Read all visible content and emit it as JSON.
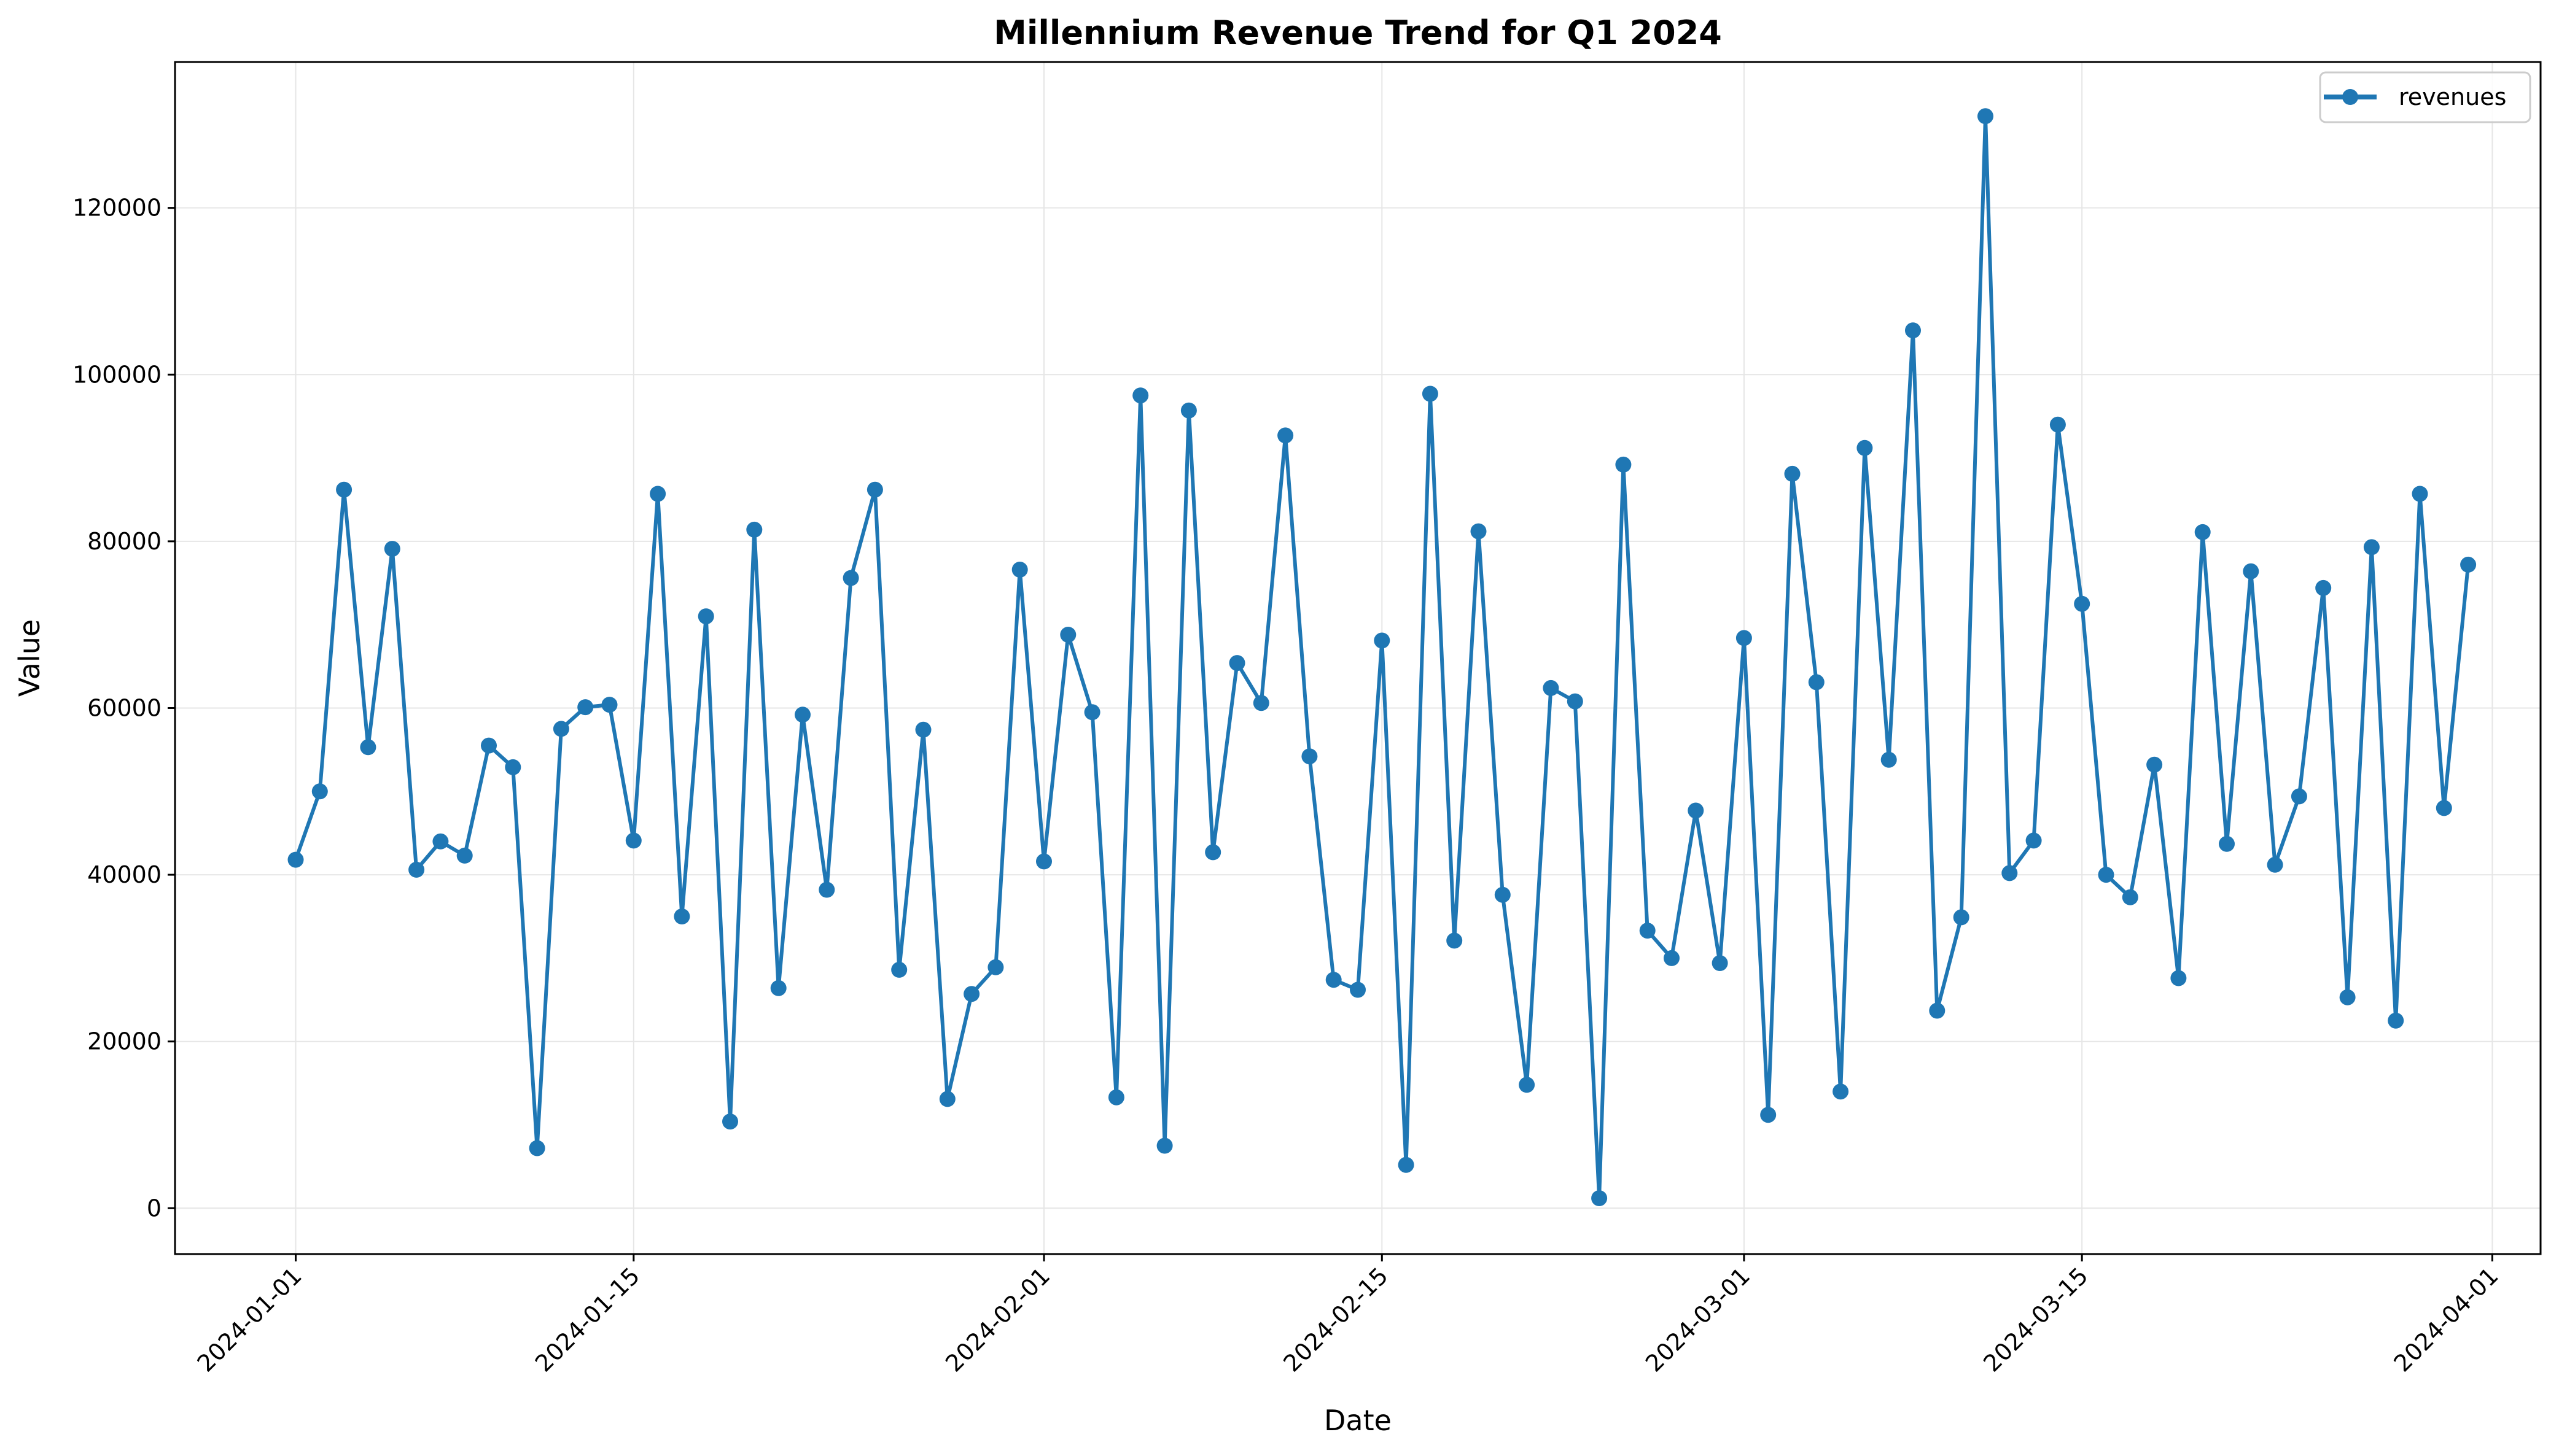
{
  "chart_data": {
    "type": "line",
    "title": "Millennium Revenue Trend for Q1 2024",
    "xlabel": "Date",
    "ylabel": "Value",
    "x_range": [
      "2023-12-27",
      "2024-04-03"
    ],
    "ylim": [
      -5500,
      137500
    ],
    "x_ticks": [
      "2024-01-01",
      "2024-01-15",
      "2024-02-01",
      "2024-02-15",
      "2024-03-01",
      "2024-03-15",
      "2024-04-01"
    ],
    "y_ticks": [
      0,
      20000,
      40000,
      60000,
      80000,
      100000,
      120000
    ],
    "grid": true,
    "legend_position": "top-right",
    "colors": {
      "series": "#1f77b4",
      "grid": "#e6e6e6",
      "axis": "#000000"
    },
    "x": [
      "2024-01-01",
      "2024-01-02",
      "2024-01-03",
      "2024-01-04",
      "2024-01-05",
      "2024-01-06",
      "2024-01-07",
      "2024-01-08",
      "2024-01-09",
      "2024-01-10",
      "2024-01-11",
      "2024-01-12",
      "2024-01-13",
      "2024-01-14",
      "2024-01-15",
      "2024-01-16",
      "2024-01-17",
      "2024-01-18",
      "2024-01-19",
      "2024-01-20",
      "2024-01-21",
      "2024-01-22",
      "2024-01-23",
      "2024-01-24",
      "2024-01-25",
      "2024-01-26",
      "2024-01-27",
      "2024-01-28",
      "2024-01-29",
      "2024-01-30",
      "2024-01-31",
      "2024-02-01",
      "2024-02-02",
      "2024-02-03",
      "2024-02-04",
      "2024-02-05",
      "2024-02-06",
      "2024-02-07",
      "2024-02-08",
      "2024-02-09",
      "2024-02-10",
      "2024-02-11",
      "2024-02-12",
      "2024-02-13",
      "2024-02-14",
      "2024-02-15",
      "2024-02-16",
      "2024-02-17",
      "2024-02-18",
      "2024-02-19",
      "2024-02-20",
      "2024-02-21",
      "2024-02-22",
      "2024-02-23",
      "2024-02-24",
      "2024-02-25",
      "2024-02-26",
      "2024-02-27",
      "2024-02-28",
      "2024-02-29",
      "2024-03-01",
      "2024-03-02",
      "2024-03-03",
      "2024-03-04",
      "2024-03-05",
      "2024-03-06",
      "2024-03-07",
      "2024-03-08",
      "2024-03-09",
      "2024-03-10",
      "2024-03-11",
      "2024-03-12",
      "2024-03-13",
      "2024-03-14",
      "2024-03-15",
      "2024-03-16",
      "2024-03-17",
      "2024-03-18",
      "2024-03-19",
      "2024-03-20",
      "2024-03-21",
      "2024-03-22",
      "2024-03-23",
      "2024-03-24",
      "2024-03-25",
      "2024-03-26",
      "2024-03-27",
      "2024-03-28",
      "2024-03-29",
      "2024-03-30",
      "2024-03-31"
    ],
    "series": [
      {
        "name": "revenues",
        "values": [
          41800,
          50000,
          86200,
          55300,
          79100,
          40600,
          44000,
          42300,
          55500,
          52900,
          7200,
          57500,
          60100,
          60400,
          44100,
          85700,
          35000,
          71000,
          10400,
          81400,
          26400,
          59200,
          38200,
          75600,
          86200,
          28600,
          57400,
          13100,
          25700,
          28900,
          76600,
          41600,
          68800,
          59500,
          13300,
          97500,
          7500,
          95700,
          42700,
          65400,
          60600,
          92700,
          54200,
          27400,
          26200,
          68100,
          5200,
          97700,
          32100,
          81200,
          37600,
          14800,
          62400,
          60800,
          1200,
          89200,
          33300,
          30000,
          47700,
          29400,
          68400,
          11200,
          88100,
          63100,
          14000,
          91200,
          53800,
          105300,
          23700,
          34900,
          131000,
          40200,
          44100,
          94000,
          72500,
          40000,
          37300,
          53200,
          27600,
          81100,
          43700,
          76400,
          41200,
          49400,
          74400,
          25300,
          79300,
          22500,
          85700,
          48000,
          77200
        ]
      }
    ]
  }
}
